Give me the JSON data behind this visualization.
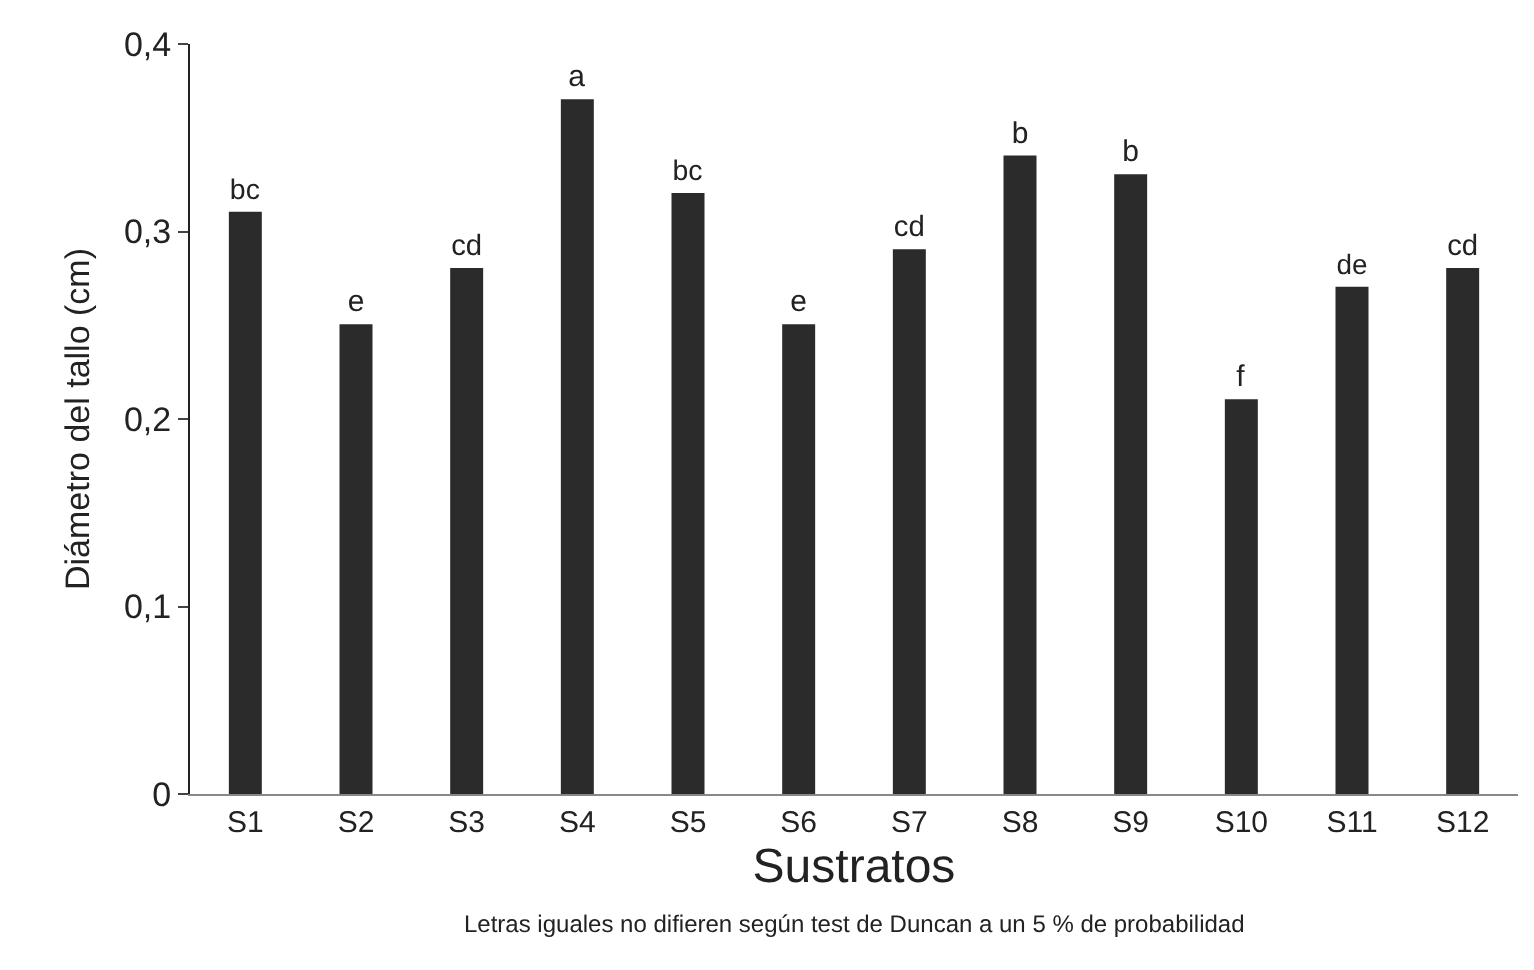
{
  "chart_data": {
    "type": "bar",
    "xlabel": "Sustratos",
    "ylabel": "Diámetro del tallo (cm)",
    "categories": [
      "S1",
      "S2",
      "S3",
      "S4",
      "S5",
      "S6",
      "S7",
      "S8",
      "S9",
      "S10",
      "S11",
      "S12"
    ],
    "values": [
      0.31,
      0.25,
      0.28,
      0.37,
      0.32,
      0.25,
      0.29,
      0.34,
      0.33,
      0.21,
      0.27,
      0.28
    ],
    "value_labels": [
      "bc",
      "e",
      "cd",
      "a",
      "bc",
      "e",
      "cd",
      "b",
      "b",
      "f",
      "de",
      "cd"
    ],
    "color": "#2b2b2b",
    "ylim": [
      0,
      0.4
    ],
    "yticks": [
      0,
      {
        "value": 0.1,
        "label": "0,1"
      },
      {
        "value": 0.2,
        "label": "0,2"
      },
      {
        "value": 0.3,
        "label": "0,3"
      },
      {
        "value": 0.4,
        "label": "0,4"
      }
    ],
    "grid": false,
    "annotations": [
      "Letras iguales no difieren según test de Duncan a un 5 % de probabilidad"
    ]
  }
}
